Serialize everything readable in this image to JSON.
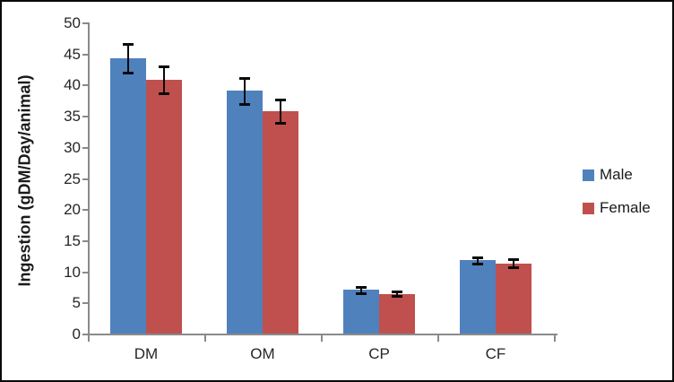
{
  "figure": {
    "background": "#ffffff",
    "border_color": "#0a0a0a"
  },
  "chart_data": {
    "type": "bar",
    "title": "",
    "xlabel": "",
    "ylabel": "Ingestion (gDM/Day/animal)",
    "categories": [
      "DM",
      "OM",
      "CP",
      "CF"
    ],
    "series": [
      {
        "name": "Male",
        "color": "#4F81BD",
        "values": [
          44.2,
          39.0,
          7.0,
          11.8
        ],
        "errors": [
          2.3,
          2.1,
          0.5,
          0.5
        ]
      },
      {
        "name": "Female",
        "color": "#C0504D",
        "values": [
          40.8,
          35.7,
          6.4,
          11.3
        ],
        "errors": [
          2.2,
          1.9,
          0.4,
          0.6
        ]
      }
    ],
    "ylim": [
      0,
      50
    ],
    "yticks": [
      0,
      5,
      10,
      15,
      20,
      25,
      30,
      35,
      40,
      45,
      50
    ],
    "grid": false,
    "error_bars": true,
    "legend_position": "right",
    "axis_color": "#8a8a8a",
    "error_bar_color": "#0a0a0a",
    "tick_label_color": "#262626"
  }
}
